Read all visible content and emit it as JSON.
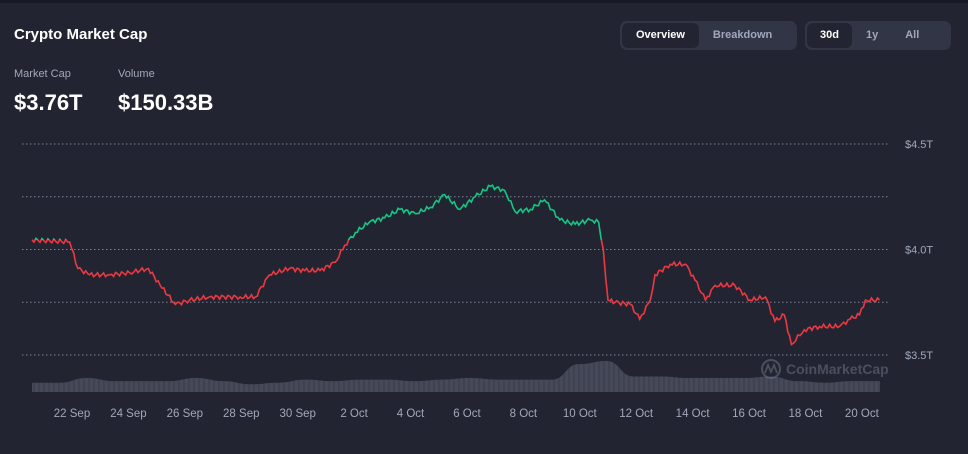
{
  "header": {
    "title": "Crypto Market Cap"
  },
  "view_tabs": [
    {
      "label": "Overview",
      "active": true
    },
    {
      "label": "Breakdown",
      "active": false
    }
  ],
  "range_tabs": [
    {
      "label": "30d",
      "active": true
    },
    {
      "label": "1y",
      "active": false
    },
    {
      "label": "All",
      "active": false
    }
  ],
  "stats": {
    "market_cap_label": "Market Cap",
    "market_cap_value": "$3.76T",
    "volume_label": "Volume",
    "volume_value": "$150.33B"
  },
  "watermark": "CoinMarketCap",
  "colors": {
    "up": "#16c784",
    "down": "#ea3943",
    "grid": "#a1a7bb",
    "volume": "#4a4e5e"
  },
  "chart_data": {
    "type": "line",
    "ylabel": "",
    "y_unit": "T USD",
    "ylim": [
      3.5,
      4.5
    ],
    "y_ticks": [
      {
        "value": 4.5,
        "label": "$4.5T"
      },
      {
        "value": 4.25,
        "label": ""
      },
      {
        "value": 4.0,
        "label": "$4.0T"
      },
      {
        "value": 3.75,
        "label": ""
      },
      {
        "value": 3.5,
        "label": "$3.5T"
      }
    ],
    "x_ticks": [
      "22 Sep",
      "24 Sep",
      "26 Sep",
      "28 Sep",
      "30 Sep",
      "2 Oct",
      "4 Oct",
      "6 Oct",
      "8 Oct",
      "10 Oct",
      "12 Oct",
      "14 Oct",
      "16 Oct",
      "18 Oct",
      "20 Oct"
    ],
    "grid": true,
    "color_rule": "green above first value, red below",
    "series": [
      {
        "x": [
          "09-20T14",
          "09-21T22",
          "09-22T05",
          "09-22T15",
          "09-23T08",
          "09-24T01",
          "09-24T17",
          "09-25T03",
          "09-25T16",
          "09-26T04",
          "09-26T21",
          "09-27T23",
          "09-28T12",
          "09-29T00",
          "09-29T17",
          "09-30T06",
          "09-30T19",
          "10-01T08",
          "10-01T16",
          "10-02T01",
          "10-02T13",
          "10-03T02",
          "10-03T15",
          "10-04T04",
          "10-04T17",
          "10-05T05",
          "10-05T18",
          "10-06T07",
          "10-06T20",
          "10-07T08",
          "10-07T17",
          "10-08T06",
          "10-08T18",
          "10-09T07",
          "10-09T20",
          "10-10T09",
          "10-10T16",
          "10-10T20",
          "10-11T00",
          "10-11T06",
          "10-11T19",
          "10-12T03",
          "10-12T12",
          "10-12T16",
          "10-13T05",
          "10-13T18",
          "10-14T02",
          "10-14T11",
          "10-14T19",
          "10-15T12",
          "10-16T01",
          "10-16T14",
          "10-16T22",
          "10-17T06",
          "10-17T12",
          "10-17T23",
          "10-18T12",
          "10-19T05",
          "10-19T14",
          "10-19T22",
          "10-20T03",
          "10-20T15"
        ],
        "y": [
          4.045,
          4.036,
          3.91,
          3.88,
          3.88,
          3.89,
          3.91,
          3.83,
          3.74,
          3.76,
          3.775,
          3.775,
          3.775,
          3.88,
          3.91,
          3.9,
          3.9,
          3.94,
          4.02,
          4.08,
          4.13,
          4.15,
          4.19,
          4.17,
          4.2,
          4.26,
          4.19,
          4.25,
          4.3,
          4.28,
          4.18,
          4.19,
          4.235,
          4.14,
          4.12,
          4.14,
          4.13,
          4.0,
          3.76,
          3.75,
          3.74,
          3.67,
          3.76,
          3.88,
          3.93,
          3.93,
          3.855,
          3.76,
          3.83,
          3.83,
          3.76,
          3.775,
          3.66,
          3.69,
          3.55,
          3.62,
          3.635,
          3.635,
          3.67,
          3.69,
          3.76,
          3.76
        ]
      }
    ],
    "volume_relative": [
      0.3,
      0.3,
      0.45,
      0.35,
      0.35,
      0.35,
      0.45,
      0.35,
      0.25,
      0.3,
      0.4,
      0.35,
      0.4,
      0.4,
      0.35,
      0.4,
      0.45,
      0.4,
      0.4,
      0.4,
      0.9,
      1.0,
      0.5,
      0.5,
      0.45,
      0.45,
      0.45,
      0.5,
      0.35,
      0.3,
      0.35,
      0.35
    ]
  }
}
